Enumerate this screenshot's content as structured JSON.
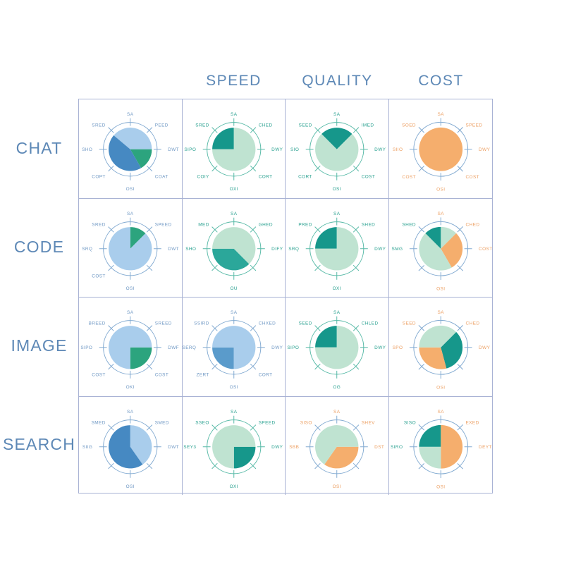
{
  "page": {
    "background": "#ffffff"
  },
  "header": {
    "columns": [
      "SPEED",
      "QUALITY",
      "COST"
    ]
  },
  "rows": [
    "CHAT",
    "CODE",
    "IMAGE",
    "SEARCH"
  ],
  "palette": {
    "lightBlue": "#a9cdec",
    "medBlue": "#5a9bcb",
    "darkBlue": "#4689c2",
    "green": "#2ca47e",
    "mint": "#bfe3d1",
    "darkTeal": "#16978b",
    "tealMed": "#2ba79a",
    "orange": "#f5ae6d",
    "ringBlue": "#82aad1",
    "ringTeal": "#56b9a6",
    "labelBlue": "#6f98c4",
    "labelTeal": "#2aa190",
    "labelOrange": "#ec9f62",
    "gridLine": "#a8b2d4",
    "headerText": "#5d88b6"
  },
  "chart_data": {
    "type": "pie",
    "layout": "4x4 matrix of pie gauges with 8 compass ticks per gauge",
    "row_labels": [
      "CHAT",
      "CODE",
      "IMAGE",
      "SEARCH"
    ],
    "column_labels": [
      "",
      "SPEED",
      "QUALITY",
      "COST"
    ],
    "angle_convention": "degrees clockwise from 12 o'clock",
    "cells": [
      [
        {
          "ring": "blue",
          "labels": [
            [
              "SA",
              "blue"
            ],
            [
              "PEED",
              "blue"
            ],
            [
              "DWT",
              "blue"
            ],
            [
              "COAT",
              "blue"
            ],
            [
              "OSI",
              "blue"
            ],
            [
              "COPT",
              "blue"
            ],
            [
              "SHO",
              "blue"
            ],
            [
              "SRED",
              "blue"
            ]
          ],
          "slices": [
            {
              "from": -50,
              "to": 90,
              "c": "lightBlue"
            },
            {
              "from": 90,
              "to": 150,
              "c": "green"
            },
            {
              "from": 150,
              "to": 310,
              "c": "darkBlue"
            }
          ]
        },
        {
          "ring": "teal",
          "labels": [
            [
              "SA",
              "teal"
            ],
            [
              "CHED",
              "teal"
            ],
            [
              "DWY",
              "teal"
            ],
            [
              "CORT",
              "teal"
            ],
            [
              "OXI",
              "teal"
            ],
            [
              "COIY",
              "teal"
            ],
            [
              "SIPO",
              "teal"
            ],
            [
              "SRED",
              "teal"
            ]
          ],
          "slices": [
            {
              "from": 270,
              "to": 360,
              "c": "darkTeal"
            },
            {
              "from": 0,
              "to": 270,
              "c": "mint"
            }
          ]
        },
        {
          "ring": "teal",
          "labels": [
            [
              "SA",
              "teal"
            ],
            [
              "IMED",
              "teal"
            ],
            [
              "DWY",
              "teal"
            ],
            [
              "COST",
              "teal"
            ],
            [
              "OSI",
              "teal"
            ],
            [
              "CORT",
              "teal"
            ],
            [
              "SIO",
              "teal"
            ],
            [
              "SEED",
              "teal"
            ]
          ],
          "slices": [
            {
              "from": -45,
              "to": 45,
              "c": "darkTeal"
            },
            {
              "from": 45,
              "to": 315,
              "c": "mint"
            }
          ]
        },
        {
          "ring": "blue",
          "labels": [
            [
              "SA",
              "orange"
            ],
            [
              "SPEED",
              "orange"
            ],
            [
              "DWY",
              "orange"
            ],
            [
              "COST",
              "orange"
            ],
            [
              "OSI",
              "orange"
            ],
            [
              "COST",
              "orange"
            ],
            [
              "SIIO",
              "orange"
            ],
            [
              "SOED",
              "orange"
            ]
          ],
          "slices": [
            {
              "from": 0,
              "to": 360,
              "c": "orange"
            }
          ]
        }
      ],
      [
        {
          "ring": "blue",
          "labels": [
            [
              "SA",
              "blue"
            ],
            [
              "SPEED",
              "blue"
            ],
            [
              "DWT",
              "blue"
            ],
            [
              "",
              "blue"
            ],
            [
              "OSI",
              "blue"
            ],
            [
              "COST",
              "blue"
            ],
            [
              "SRQ",
              "blue"
            ],
            [
              "SRED",
              "blue"
            ]
          ],
          "slices": [
            {
              "from": 0,
              "to": 45,
              "c": "green"
            },
            {
              "from": 45,
              "to": 360,
              "c": "lightBlue"
            }
          ]
        },
        {
          "ring": "teal",
          "labels": [
            [
              "SA",
              "teal"
            ],
            [
              "GHED",
              "teal"
            ],
            [
              "DIFY",
              "teal"
            ],
            [
              "",
              "teal"
            ],
            [
              "OU",
              "teal"
            ],
            [
              "",
              "teal"
            ],
            [
              "SHO",
              "teal"
            ],
            [
              "MED",
              "teal"
            ]
          ],
          "slices": [
            {
              "from": 135,
              "to": 270,
              "c": "tealMed"
            },
            {
              "from": -90,
              "to": 135,
              "c": "mint"
            }
          ]
        },
        {
          "ring": "teal",
          "labels": [
            [
              "SA",
              "teal"
            ],
            [
              "SHED",
              "teal"
            ],
            [
              "DWY",
              "teal"
            ],
            [
              "",
              "teal"
            ],
            [
              "OXI",
              "teal"
            ],
            [
              "",
              "teal"
            ],
            [
              "SRQ",
              "teal"
            ],
            [
              "PRED",
              "teal"
            ]
          ],
          "slices": [
            {
              "from": 270,
              "to": 360,
              "c": "darkTeal"
            },
            {
              "from": 0,
              "to": 270,
              "c": "mint"
            }
          ]
        },
        {
          "ring": "blue",
          "labels": [
            [
              "SA",
              "orange"
            ],
            [
              "CHED",
              "orange"
            ],
            [
              "COST",
              "orange"
            ],
            [
              "",
              "orange"
            ],
            [
              "OSI",
              "orange"
            ],
            [
              "",
              "orange"
            ],
            [
              "SMG",
              "teal"
            ],
            [
              "SHED",
              "teal"
            ]
          ],
          "slices": [
            {
              "from": 0,
              "to": 45,
              "c": "mint"
            },
            {
              "from": 45,
              "to": 150,
              "c": "orange"
            },
            {
              "from": 150,
              "to": 315,
              "c": "mint"
            },
            {
              "from": 315,
              "to": 360,
              "c": "darkTeal"
            }
          ]
        }
      ],
      [
        {
          "ring": "blue",
          "labels": [
            [
              "SA",
              "blue"
            ],
            [
              "SREED",
              "blue"
            ],
            [
              "DWF",
              "blue"
            ],
            [
              "COST",
              "blue"
            ],
            [
              "OKI",
              "blue"
            ],
            [
              "COST",
              "blue"
            ],
            [
              "SIPO",
              "blue"
            ],
            [
              "BREED",
              "blue"
            ]
          ],
          "slices": [
            {
              "from": 90,
              "to": 180,
              "c": "green"
            },
            {
              "from": 180,
              "to": 450,
              "c": "lightBlue"
            }
          ]
        },
        {
          "ring": "blue",
          "labels": [
            [
              "SA",
              "blue"
            ],
            [
              "CHXED",
              "blue"
            ],
            [
              "DWY",
              "blue"
            ],
            [
              "CORT",
              "blue"
            ],
            [
              "OSI",
              "blue"
            ],
            [
              "ZERT",
              "blue"
            ],
            [
              "SERQ",
              "blue"
            ],
            [
              "SSIRD",
              "blue"
            ]
          ],
          "slices": [
            {
              "from": 180,
              "to": 270,
              "c": "medBlue"
            },
            {
              "from": 270,
              "to": 540,
              "c": "lightBlue"
            }
          ]
        },
        {
          "ring": "teal",
          "labels": [
            [
              "SA",
              "teal"
            ],
            [
              "CHLED",
              "teal"
            ],
            [
              "DWY",
              "teal"
            ],
            [
              "",
              "teal"
            ],
            [
              "OG",
              "teal"
            ],
            [
              "",
              "teal"
            ],
            [
              "SIPO",
              "teal"
            ],
            [
              "SEED",
              "teal"
            ]
          ],
          "slices": [
            {
              "from": 270,
              "to": 360,
              "c": "darkTeal"
            },
            {
              "from": 0,
              "to": 270,
              "c": "mint"
            }
          ]
        },
        {
          "ring": "blue",
          "labels": [
            [
              "SA",
              "orange"
            ],
            [
              "CHED",
              "orange"
            ],
            [
              "DWY",
              "orange"
            ],
            [
              "",
              "orange"
            ],
            [
              "OSI",
              "orange"
            ],
            [
              "",
              "orange"
            ],
            [
              "SPO",
              "orange"
            ],
            [
              "SEED",
              "orange"
            ]
          ],
          "slices": [
            {
              "from": 45,
              "to": 165,
              "c": "darkTeal"
            },
            {
              "from": 165,
              "to": 270,
              "c": "orange"
            },
            {
              "from": 270,
              "to": 405,
              "c": "mint"
            }
          ]
        }
      ],
      [
        {
          "ring": "blue",
          "labels": [
            [
              "SA",
              "blue"
            ],
            [
              "SMED",
              "blue"
            ],
            [
              "DWT",
              "blue"
            ],
            [
              "",
              "blue"
            ],
            [
              "OSI",
              "blue"
            ],
            [
              "",
              "blue"
            ],
            [
              "SIIG",
              "blue"
            ],
            [
              "SMED",
              "blue"
            ]
          ],
          "slices": [
            {
              "from": 0,
              "to": 145,
              "c": "lightBlue"
            },
            {
              "from": 145,
              "to": 360,
              "c": "darkBlue"
            }
          ]
        },
        {
          "ring": "teal",
          "labels": [
            [
              "SA",
              "teal"
            ],
            [
              "SPEED",
              "teal"
            ],
            [
              "DWY",
              "teal"
            ],
            [
              "",
              "teal"
            ],
            [
              "OXI",
              "teal"
            ],
            [
              "",
              "teal"
            ],
            [
              "SEY3",
              "teal"
            ],
            [
              "SSEO",
              "teal"
            ]
          ],
          "slices": [
            {
              "from": 90,
              "to": 180,
              "c": "darkTeal"
            },
            {
              "from": 180,
              "to": 450,
              "c": "mint"
            }
          ]
        },
        {
          "ring": "blue",
          "labels": [
            [
              "SA",
              "orange"
            ],
            [
              "SHEV",
              "orange"
            ],
            [
              "DST",
              "orange"
            ],
            [
              "",
              "orange"
            ],
            [
              "OSI",
              "orange"
            ],
            [
              "",
              "orange"
            ],
            [
              "SBB",
              "orange"
            ],
            [
              "SISO",
              "orange"
            ]
          ],
          "slices": [
            {
              "from": 90,
              "to": 215,
              "c": "orange"
            },
            {
              "from": 215,
              "to": 450,
              "c": "mint"
            }
          ]
        },
        {
          "ring": "blue",
          "labels": [
            [
              "SA",
              "orange"
            ],
            [
              "EXED",
              "orange"
            ],
            [
              "DEYT",
              "orange"
            ],
            [
              "",
              "orange"
            ],
            [
              "OSI",
              "orange"
            ],
            [
              "",
              "orange"
            ],
            [
              "SIRO",
              "teal"
            ],
            [
              "SISO",
              "teal"
            ]
          ],
          "slices": [
            {
              "from": 0,
              "to": 180,
              "c": "orange"
            },
            {
              "from": 180,
              "to": 270,
              "c": "mint"
            },
            {
              "from": 270,
              "to": 360,
              "c": "darkTeal"
            }
          ]
        }
      ]
    ]
  }
}
